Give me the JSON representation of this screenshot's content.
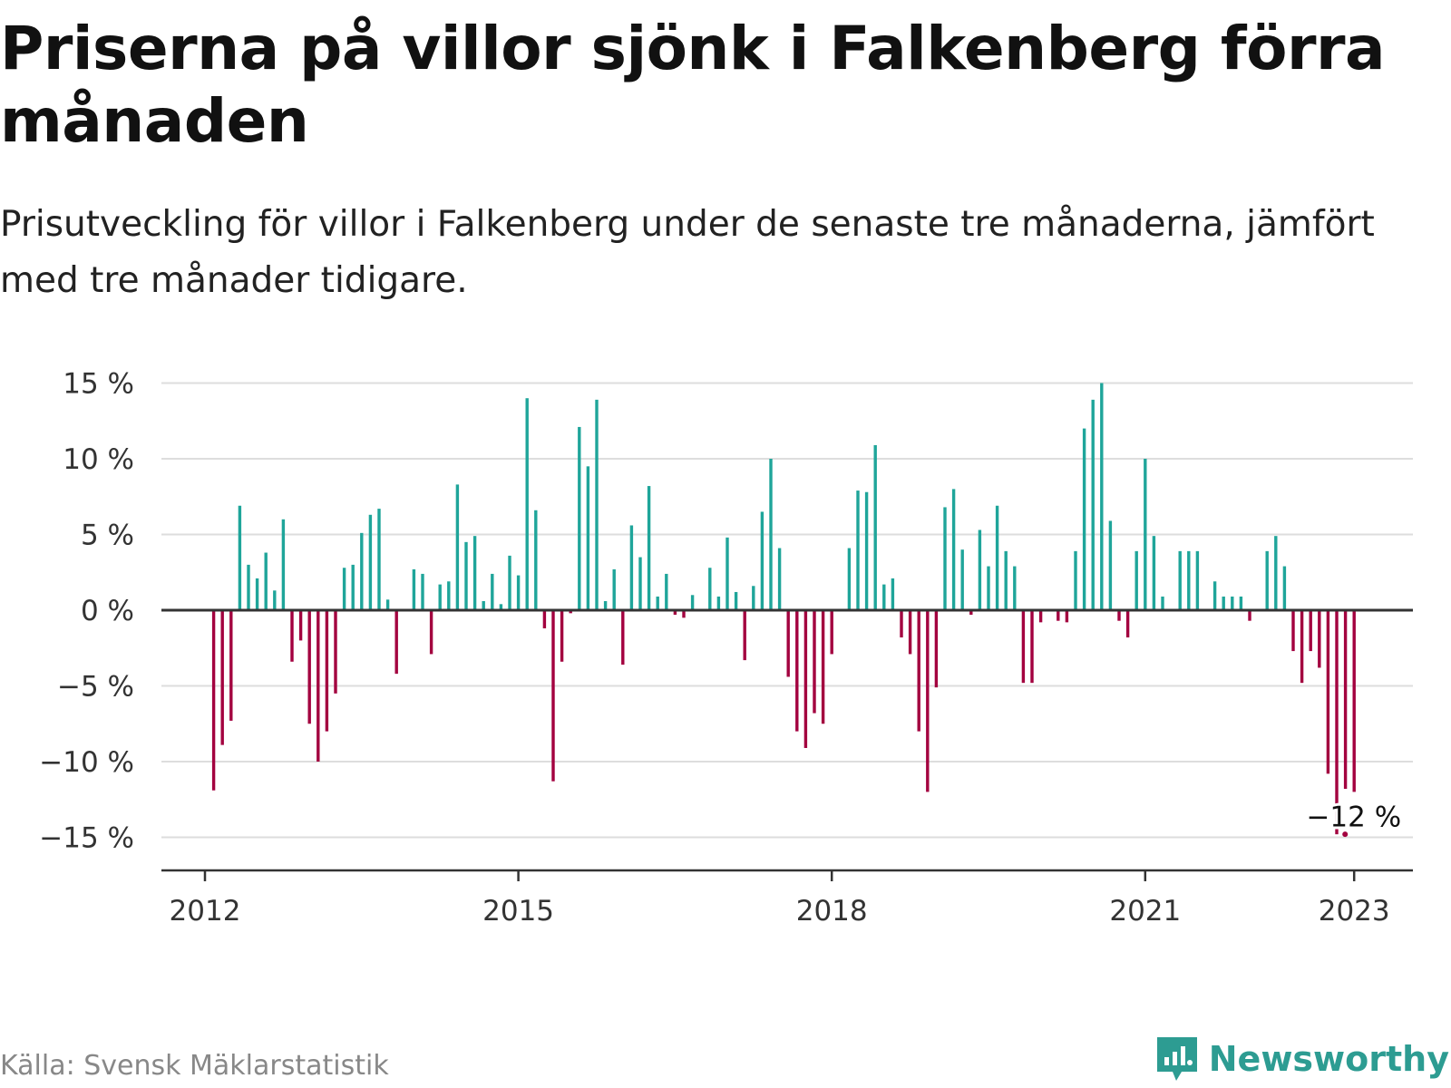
{
  "title": "Priserna på villor sjönk i Falkenberg förra månaden",
  "subtitle": "Prisutveckling för villor i Falkenberg under de senaste tre månaderna, jämfört med tre månader tidigare.",
  "source": "Källa: Svensk Mäklarstatistik",
  "brand": {
    "name": "Newsworthy",
    "icon": "newsworthy-logo-icon",
    "color": "#2d9c92"
  },
  "chart_data": {
    "type": "bar",
    "title": "Priserna på villor sjönk i Falkenberg förra månaden",
    "subtitle": "Prisutveckling för villor i Falkenberg under de senaste tre månaderna, jämfört med tre månader tidigare.",
    "ylabel": "",
    "ylim": [
      -17,
      15.5
    ],
    "yticks": [
      15,
      10,
      5,
      0,
      -5,
      -10,
      -15
    ],
    "ytick_labels": [
      "15 %",
      "10 %",
      "5 %",
      "0 %",
      "−5 %",
      "−10 %",
      "−15 %"
    ],
    "x_ticks": [
      {
        "label": "2012",
        "date": "2012-01"
      },
      {
        "label": "2015",
        "date": "2015-01"
      },
      {
        "label": "2018",
        "date": "2018-01"
      },
      {
        "label": "2021",
        "date": "2021-01"
      },
      {
        "label": "2023",
        "date": "2023-01"
      }
    ],
    "grid": true,
    "colors": {
      "positive": "#1fa59a",
      "negative": "#a3003f",
      "grid": "#dddddd",
      "zero": "#333333"
    },
    "annotation": {
      "text": "−12 %",
      "date": "2023-01",
      "value": -12
    },
    "series": [
      {
        "values": [
          [
            "2012-02",
            -11.9
          ],
          [
            "2012-03",
            -8.9
          ],
          [
            "2012-04",
            -7.3
          ],
          [
            "2012-05",
            6.9
          ],
          [
            "2012-06",
            3.0
          ],
          [
            "2012-07",
            2.1
          ],
          [
            "2012-08",
            3.8
          ],
          [
            "2012-09",
            1.3
          ],
          [
            "2012-10",
            6.0
          ],
          [
            "2012-11",
            -3.4
          ],
          [
            "2012-12",
            -2.0
          ],
          [
            "2013-01",
            -7.5
          ],
          [
            "2013-02",
            -10.0
          ],
          [
            "2013-03",
            -8.0
          ],
          [
            "2013-04",
            -5.5
          ],
          [
            "2013-05",
            2.8
          ],
          [
            "2013-06",
            3.0
          ],
          [
            "2013-07",
            5.1
          ],
          [
            "2013-08",
            6.3
          ],
          [
            "2013-09",
            6.7
          ],
          [
            "2013-10",
            0.7
          ],
          [
            "2013-11",
            -4.2
          ],
          [
            "2014-01",
            2.7
          ],
          [
            "2014-02",
            2.4
          ],
          [
            "2014-03",
            -2.9
          ],
          [
            "2014-04",
            1.7
          ],
          [
            "2014-05",
            1.9
          ],
          [
            "2014-06",
            8.3
          ],
          [
            "2014-07",
            4.5
          ],
          [
            "2014-08",
            4.9
          ],
          [
            "2014-09",
            0.6
          ],
          [
            "2014-10",
            2.4
          ],
          [
            "2014-11",
            0.4
          ],
          [
            "2014-12",
            3.6
          ],
          [
            "2015-01",
            2.3
          ],
          [
            "2015-02",
            14.0
          ],
          [
            "2015-03",
            6.6
          ],
          [
            "2015-04",
            -1.2
          ],
          [
            "2015-05",
            -11.3
          ],
          [
            "2015-06",
            -3.4
          ],
          [
            "2015-07",
            -0.2
          ],
          [
            "2015-08",
            12.1
          ],
          [
            "2015-09",
            9.5
          ],
          [
            "2015-10",
            13.9
          ],
          [
            "2015-11",
            0.6
          ],
          [
            "2015-12",
            2.7
          ],
          [
            "2016-01",
            -3.6
          ],
          [
            "2016-02",
            5.6
          ],
          [
            "2016-03",
            3.5
          ],
          [
            "2016-04",
            8.2
          ],
          [
            "2016-05",
            0.9
          ],
          [
            "2016-06",
            2.4
          ],
          [
            "2016-07",
            -0.3
          ],
          [
            "2016-08",
            -0.5
          ],
          [
            "2016-09",
            1.0
          ],
          [
            "2016-11",
            2.8
          ],
          [
            "2016-12",
            0.9
          ],
          [
            "2017-01",
            4.8
          ],
          [
            "2017-02",
            1.2
          ],
          [
            "2017-03",
            -3.3
          ],
          [
            "2017-04",
            1.6
          ],
          [
            "2017-05",
            6.5
          ],
          [
            "2017-06",
            10.0
          ],
          [
            "2017-07",
            4.1
          ],
          [
            "2017-08",
            -4.4
          ],
          [
            "2017-09",
            -8.0
          ],
          [
            "2017-10",
            -9.1
          ],
          [
            "2017-11",
            -6.8
          ],
          [
            "2017-12",
            -7.5
          ],
          [
            "2018-01",
            -2.9
          ],
          [
            "2018-03",
            4.1
          ],
          [
            "2018-04",
            7.9
          ],
          [
            "2018-05",
            7.8
          ],
          [
            "2018-06",
            10.9
          ],
          [
            "2018-07",
            1.7
          ],
          [
            "2018-08",
            2.1
          ],
          [
            "2018-09",
            -1.8
          ],
          [
            "2018-10",
            -2.9
          ],
          [
            "2018-11",
            -8.0
          ],
          [
            "2018-12",
            -12.0
          ],
          [
            "2019-01",
            -5.1
          ],
          [
            "2019-02",
            6.8
          ],
          [
            "2019-03",
            8.0
          ],
          [
            "2019-04",
            4.0
          ],
          [
            "2019-05",
            -0.3
          ],
          [
            "2019-06",
            5.3
          ],
          [
            "2019-07",
            2.9
          ],
          [
            "2019-08",
            6.9
          ],
          [
            "2019-09",
            3.9
          ],
          [
            "2019-10",
            2.9
          ],
          [
            "2019-11",
            -4.8
          ],
          [
            "2019-12",
            -4.8
          ],
          [
            "2020-01",
            -0.8
          ],
          [
            "2020-03",
            -0.7
          ],
          [
            "2020-04",
            -0.8
          ],
          [
            "2020-05",
            3.9
          ],
          [
            "2020-06",
            12.0
          ],
          [
            "2020-07",
            13.9
          ],
          [
            "2020-08",
            15.0
          ],
          [
            "2020-09",
            5.9
          ],
          [
            "2020-10",
            -0.7
          ],
          [
            "2020-11",
            -1.8
          ],
          [
            "2020-12",
            3.9
          ],
          [
            "2021-01",
            10.0
          ],
          [
            "2021-02",
            4.9
          ],
          [
            "2021-03",
            0.9
          ],
          [
            "2021-05",
            3.9
          ],
          [
            "2021-06",
            3.9
          ],
          [
            "2021-07",
            3.9
          ],
          [
            "2021-09",
            1.9
          ],
          [
            "2021-10",
            0.9
          ],
          [
            "2021-11",
            0.9
          ],
          [
            "2021-12",
            0.9
          ],
          [
            "2022-01",
            -0.7
          ],
          [
            "2022-03",
            3.9
          ],
          [
            "2022-04",
            4.9
          ],
          [
            "2022-05",
            2.9
          ],
          [
            "2022-06",
            -2.7
          ],
          [
            "2022-07",
            -4.8
          ],
          [
            "2022-08",
            -2.7
          ],
          [
            "2022-09",
            -3.8
          ],
          [
            "2022-10",
            -10.8
          ],
          [
            "2022-11",
            -14.8
          ],
          [
            "2022-12",
            -11.8
          ],
          [
            "2023-01",
            -12.0
          ]
        ]
      }
    ]
  }
}
